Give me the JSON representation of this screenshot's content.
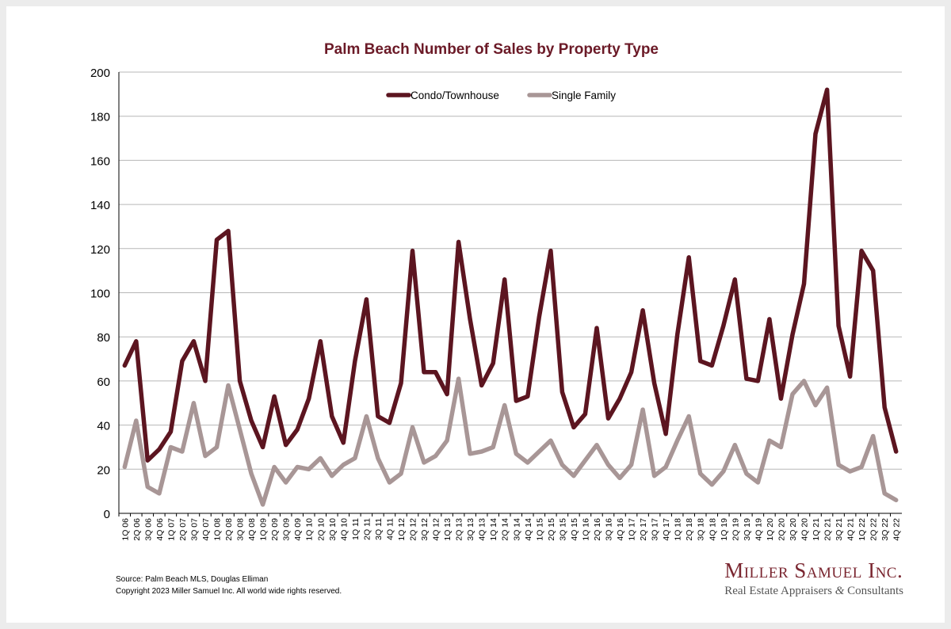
{
  "chart_data": {
    "type": "line",
    "title": "Palm Beach Number of Sales by Property Type",
    "xlabel": "",
    "ylabel": "",
    "ylim": [
      0,
      200
    ],
    "yticks": [
      0,
      20,
      40,
      60,
      80,
      100,
      120,
      140,
      160,
      180,
      200
    ],
    "grid": true,
    "legend_position": "top-center",
    "categories": [
      "1Q 06",
      "2Q 06",
      "3Q 06",
      "4Q 06",
      "1Q 07",
      "2Q 07",
      "3Q 07",
      "4Q 07",
      "1Q 08",
      "2Q 08",
      "3Q 08",
      "4Q 08",
      "1Q 09",
      "2Q 09",
      "3Q 09",
      "4Q 09",
      "1Q 10",
      "2Q 10",
      "3Q 10",
      "4Q 10",
      "1Q 11",
      "2Q 11",
      "3Q 11",
      "4Q 11",
      "1Q 12",
      "2Q 12",
      "3Q 12",
      "4Q 12",
      "1Q 13",
      "2Q 13",
      "3Q 13",
      "4Q 13",
      "1Q 14",
      "2Q 14",
      "3Q 14",
      "4Q 14",
      "1Q 15",
      "2Q 15",
      "3Q 15",
      "4Q 15",
      "1Q 16",
      "2Q 16",
      "3Q 16",
      "4Q 16",
      "1Q 17",
      "2Q 17",
      "3Q 17",
      "4Q 17",
      "1Q 18",
      "2Q 18",
      "3Q 18",
      "4Q 18",
      "1Q 19",
      "2Q 19",
      "3Q 19",
      "4Q 19",
      "1Q 20",
      "2Q 20",
      "3Q 20",
      "4Q 20",
      "1Q 21",
      "2Q 21",
      "3Q 21",
      "4Q 21",
      "1Q 22",
      "2Q 22",
      "3Q 22",
      "4Q 22"
    ],
    "series": [
      {
        "name": "Condo/Townhouse",
        "color": "#5c1520",
        "values": [
          67,
          78,
          24,
          29,
          37,
          69,
          78,
          60,
          124,
          128,
          60,
          42,
          30,
          53,
          31,
          38,
          52,
          78,
          44,
          32,
          69,
          97,
          44,
          41,
          59,
          119,
          64,
          64,
          54,
          123,
          88,
          58,
          68,
          106,
          51,
          53,
          89,
          119,
          55,
          39,
          45,
          84,
          43,
          52,
          64,
          92,
          59,
          36,
          81,
          116,
          69,
          67,
          85,
          106,
          61,
          60,
          88,
          52,
          81,
          104,
          172,
          192,
          85,
          62,
          119,
          110,
          48,
          28
        ]
      },
      {
        "name": "Single Family",
        "color": "#a89696",
        "values": [
          21,
          42,
          12,
          9,
          30,
          28,
          50,
          26,
          30,
          58,
          38,
          18,
          4,
          21,
          14,
          21,
          20,
          25,
          17,
          22,
          25,
          44,
          25,
          14,
          18,
          39,
          23,
          26,
          33,
          61,
          27,
          28,
          30,
          49,
          27,
          23,
          28,
          33,
          22,
          17,
          24,
          31,
          22,
          16,
          22,
          47,
          17,
          21,
          33,
          44,
          18,
          13,
          19,
          31,
          18,
          14,
          33,
          30,
          54,
          60,
          49,
          57,
          22,
          19,
          21,
          35,
          9,
          6
        ]
      }
    ]
  },
  "source": {
    "line1": "Source: Palm Beach MLS, Douglas Elliman",
    "line2": "Copyright 2023 Miller Samuel Inc.  All world wide rights reserved."
  },
  "logo": {
    "name": "Miller Samuel Inc.",
    "tagline_before": "Real Estate Appraisers ",
    "tagline_amp": "&",
    "tagline_after": " Consultants"
  }
}
